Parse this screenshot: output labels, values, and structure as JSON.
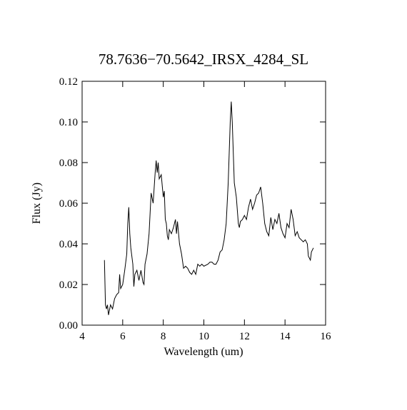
{
  "chart_data": {
    "type": "line",
    "title": "78.7636−70.5642_IRSX_4284_SL",
    "x_label": "Wavelength (um)",
    "y_label": "Flux (Jy)",
    "xlim": [
      4,
      16
    ],
    "ylim": [
      0,
      0.12
    ],
    "xticks": [
      4,
      6,
      8,
      10,
      12,
      14,
      16
    ],
    "yticks": [
      {
        "value": 0,
        "label": "0.00"
      },
      {
        "value": 0.02,
        "label": "0.02"
      },
      {
        "value": 0.04,
        "label": "0.04"
      },
      {
        "value": 0.06,
        "label": "0.06"
      },
      {
        "value": 0.08,
        "label": "0.08"
      },
      {
        "value": 0.1,
        "label": "0.10"
      },
      {
        "value": 0.12,
        "label": "0.12"
      }
    ],
    "color": "#000000",
    "x": [
      5.1,
      5.15,
      5.2,
      5.25,
      5.3,
      5.4,
      5.5,
      5.6,
      5.7,
      5.8,
      5.85,
      5.9,
      6.0,
      6.1,
      6.2,
      6.25,
      6.3,
      6.35,
      6.4,
      6.5,
      6.55,
      6.6,
      6.7,
      6.8,
      6.9,
      7.0,
      7.05,
      7.1,
      7.2,
      7.3,
      7.35,
      7.4,
      7.5,
      7.6,
      7.65,
      7.7,
      7.75,
      7.8,
      7.9,
      8.0,
      8.05,
      8.1,
      8.15,
      8.2,
      8.25,
      8.3,
      8.4,
      8.5,
      8.6,
      8.65,
      8.7,
      8.8,
      8.9,
      9.0,
      9.1,
      9.2,
      9.3,
      9.4,
      9.5,
      9.6,
      9.7,
      9.8,
      9.9,
      10.0,
      10.2,
      10.3,
      10.4,
      10.5,
      10.6,
      10.7,
      10.8,
      10.9,
      11.0,
      11.1,
      11.2,
      11.3,
      11.35,
      11.4,
      11.5,
      11.6,
      11.7,
      11.75,
      11.8,
      11.9,
      12.0,
      12.1,
      12.2,
      12.3,
      12.4,
      12.5,
      12.6,
      12.7,
      12.8,
      12.9,
      13.0,
      13.1,
      13.2,
      13.3,
      13.4,
      13.5,
      13.6,
      13.7,
      13.8,
      13.9,
      14.0,
      14.1,
      14.2,
      14.3,
      14.4,
      14.5,
      14.6,
      14.7,
      14.8,
      14.9,
      15.0,
      15.1,
      15.15,
      15.25,
      15.3,
      15.4
    ],
    "values": [
      0.032,
      0.01,
      0.008,
      0.01,
      0.005,
      0.01,
      0.008,
      0.013,
      0.015,
      0.016,
      0.025,
      0.018,
      0.02,
      0.027,
      0.035,
      0.05,
      0.058,
      0.045,
      0.038,
      0.03,
      0.019,
      0.025,
      0.027,
      0.022,
      0.027,
      0.021,
      0.02,
      0.03,
      0.035,
      0.045,
      0.055,
      0.065,
      0.06,
      0.075,
      0.081,
      0.075,
      0.08,
      0.072,
      0.074,
      0.063,
      0.066,
      0.052,
      0.05,
      0.044,
      0.042,
      0.047,
      0.045,
      0.048,
      0.052,
      0.045,
      0.051,
      0.04,
      0.035,
      0.028,
      0.029,
      0.028,
      0.026,
      0.025,
      0.027,
      0.025,
      0.03,
      0.029,
      0.03,
      0.029,
      0.03,
      0.031,
      0.031,
      0.03,
      0.03,
      0.032,
      0.036,
      0.037,
      0.042,
      0.05,
      0.07,
      0.1,
      0.11,
      0.1,
      0.07,
      0.063,
      0.05,
      0.048,
      0.051,
      0.052,
      0.054,
      0.052,
      0.058,
      0.062,
      0.057,
      0.06,
      0.064,
      0.065,
      0.068,
      0.06,
      0.05,
      0.046,
      0.044,
      0.053,
      0.047,
      0.052,
      0.05,
      0.055,
      0.048,
      0.045,
      0.043,
      0.05,
      0.048,
      0.057,
      0.052,
      0.044,
      0.046,
      0.043,
      0.042,
      0.041,
      0.042,
      0.04,
      0.034,
      0.032,
      0.036,
      0.038
    ]
  }
}
